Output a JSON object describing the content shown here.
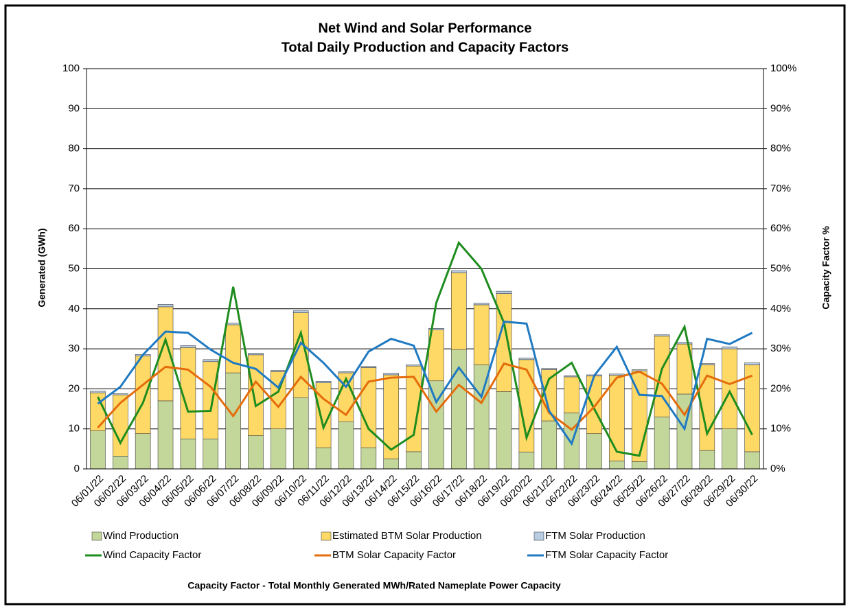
{
  "chart_data": {
    "type": "bar",
    "title": "Net Wind and Solar Performance",
    "subtitle": "Total Daily Production and Capacity Factors",
    "y_label": "Generated (GWh)",
    "y2_label": "Capacity Factor %",
    "footnote": "Capacity Factor  - Total Monthly Generated MWh/Rated Nameplate Power Capacity",
    "categories": [
      "06/01/22",
      "06/02/22",
      "06/03/22",
      "06/04/22",
      "06/05/22",
      "06/06/22",
      "06/07/22",
      "06/08/22",
      "06/09/22",
      "06/10/22",
      "06/11/22",
      "06/12/22",
      "06/13/22",
      "06/14/22",
      "06/15/22",
      "06/16/22",
      "06/17/22",
      "06/18/22",
      "06/19/22",
      "06/20/22",
      "06/21/22",
      "06/22/22",
      "06/23/22",
      "06/24/22",
      "06/25/22",
      "06/26/22",
      "06/27/22",
      "06/28/22",
      "06/29/22",
      "06/30/22"
    ],
    "stacked": true,
    "grid": true,
    "ylim": [
      0,
      100
    ],
    "yticks": [
      0,
      10,
      20,
      30,
      40,
      50,
      60,
      70,
      80,
      90,
      100
    ],
    "y2lim": [
      0,
      100
    ],
    "y2ticks": [
      {
        "value": 0,
        "label": "0%"
      },
      {
        "value": 10,
        "label": "10%"
      },
      {
        "value": 20,
        "label": "20%"
      },
      {
        "value": 30,
        "label": "30%"
      },
      {
        "value": 40,
        "label": "40%"
      },
      {
        "value": 50,
        "label": "50%"
      },
      {
        "value": 60,
        "label": "60%"
      },
      {
        "value": 70,
        "label": "70%"
      },
      {
        "value": 80,
        "label": "80%"
      },
      {
        "value": 90,
        "label": "90%"
      },
      {
        "value": 100,
        "label": "100%"
      }
    ],
    "series": [
      {
        "name": "Wind Production",
        "kind": "bar",
        "color": "#c4d79b",
        "values": [
          9.5,
          3.2,
          8.8,
          17,
          7.5,
          7.5,
          24,
          8.3,
          10,
          17.8,
          5.3,
          11.8,
          5.3,
          2.5,
          4.3,
          22,
          29.8,
          26,
          19.3,
          4.2,
          12,
          14,
          8.8,
          2,
          1.8,
          13,
          18.7,
          4.6,
          10,
          4.3
        ]
      },
      {
        "name": "Estimated BTM Solar Production",
        "kind": "bar",
        "color": "#ffd966",
        "values": [
          9.5,
          15.3,
          19.4,
          23.5,
          22.8,
          19.3,
          12,
          20.2,
          14.3,
          21.2,
          16.2,
          12.2,
          20,
          21,
          21.4,
          12.7,
          19.2,
          15,
          24.5,
          23.1,
          12.8,
          9,
          14.4,
          21.4,
          22.7,
          20.2,
          12.5,
          21.4,
          20,
          21.7
        ]
      },
      {
        "name": "FTM Solar Production",
        "kind": "bar",
        "color": "#b8cce4",
        "values": [
          0.4,
          0.3,
          0.4,
          0.6,
          0.5,
          0.5,
          0.4,
          0.4,
          0.3,
          0.5,
          0.4,
          0.3,
          0.3,
          0.4,
          0.3,
          0.4,
          0.5,
          0.4,
          0.6,
          0.4,
          0.3,
          0.3,
          0.3,
          0.3,
          0.3,
          0.3,
          0.4,
          0.3,
          0.5,
          0.5
        ]
      },
      {
        "name": "Wind Capacity Factor",
        "kind": "line",
        "axis": "y2",
        "color": "#1e8c1e",
        "values": [
          18,
          6.5,
          16.5,
          32.3,
          14.3,
          14.5,
          45.5,
          15.7,
          19.3,
          34,
          10.3,
          22.5,
          10,
          4.8,
          8.5,
          41.5,
          56.5,
          50,
          36.5,
          7.8,
          22.5,
          26.5,
          15,
          4.3,
          3.3,
          25,
          35.5,
          8.8,
          19.3,
          8.5
        ]
      },
      {
        "name": "BTM Solar Capacity Factor",
        "kind": "line",
        "axis": "y2",
        "color": "#e46c0a",
        "values": [
          10.3,
          16.5,
          21,
          25.5,
          24.8,
          20.5,
          13.2,
          21.8,
          15.5,
          23,
          17.5,
          13.5,
          21.8,
          22.8,
          23,
          14.3,
          21,
          16.5,
          26.3,
          24.8,
          14,
          9.8,
          15.5,
          22.8,
          24.3,
          21.3,
          13.5,
          23.3,
          21.2,
          23.3
        ]
      },
      {
        "name": "FTM Solar Capacity Factor",
        "kind": "line",
        "axis": "y2",
        "color": "#1f7ac2",
        "values": [
          16.3,
          20.5,
          28.5,
          34.3,
          34,
          29.8,
          26.5,
          25,
          20.3,
          31.5,
          26.5,
          20.5,
          29.3,
          32.5,
          30.8,
          16.7,
          25.3,
          18,
          36.8,
          36.3,
          14.5,
          6.3,
          23.3,
          30.5,
          18.5,
          18.2,
          10,
          32.5,
          31.2,
          34
        ]
      }
    ]
  }
}
